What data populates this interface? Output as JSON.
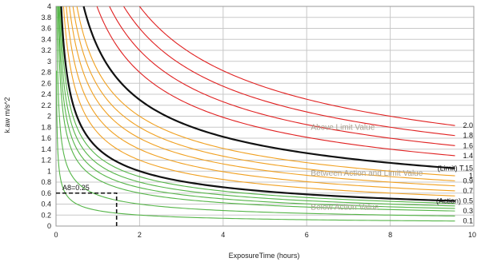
{
  "chart_data": {
    "type": "line",
    "xlabel": "ExposureTime (hours)",
    "ylabel": "k.aw m/s^2",
    "xlim": [
      0,
      10
    ],
    "ylim": [
      0,
      4
    ],
    "x_ticks": [
      "0",
      "2",
      "4",
      "6",
      "8",
      "10"
    ],
    "y_ticks": [
      "0",
      "0.2",
      "0.4",
      "0.6",
      "0.8",
      "1",
      "1.2",
      "1.4",
      "1.6",
      "1.8",
      "2",
      "2.2",
      "2.4",
      "2.6",
      "2.8",
      "3",
      "3.2",
      "3.4",
      "3.6",
      "3.8",
      "4"
    ],
    "grid": true,
    "colors": {
      "below_action": "#55b548",
      "between": "#f0a020",
      "above_limit": "#e02020",
      "reference": "#111111",
      "grid": "#c8c8c8",
      "zone_text": "#a8a090"
    },
    "series": [
      {
        "name": "0.1",
        "a8": 0.1,
        "zone": "below",
        "labeled": true
      },
      {
        "a8": 0.2,
        "zone": "below",
        "labeled": false
      },
      {
        "name": "0.3",
        "a8": 0.3,
        "zone": "below",
        "labeled": true
      },
      {
        "a8": 0.35,
        "zone": "below",
        "labeled": false
      },
      {
        "a8": 0.4,
        "zone": "below",
        "labeled": false
      },
      {
        "a8": 0.45,
        "zone": "below",
        "labeled": false
      },
      {
        "name": "(Action) 0.5",
        "a8": 0.5,
        "zone": "reference",
        "labeled": true
      },
      {
        "a8": 0.6,
        "zone": "between",
        "labeled": false
      },
      {
        "name": "0.7",
        "a8": 0.7,
        "zone": "between",
        "labeled": true
      },
      {
        "a8": 0.8,
        "zone": "between",
        "labeled": false
      },
      {
        "name": "0.9",
        "a8": 0.9,
        "zone": "between",
        "labeled": true
      },
      {
        "name": "1",
        "a8": 1.0,
        "zone": "between",
        "labeled": true
      },
      {
        "name": "(Limit) T.15",
        "a8": 1.15,
        "zone": "reference",
        "labeled": true
      },
      {
        "name": "1.4",
        "a8": 1.4,
        "zone": "above",
        "labeled": true
      },
      {
        "name": "1.6",
        "a8": 1.6,
        "zone": "above",
        "labeled": true
      },
      {
        "name": "1.8",
        "a8": 1.8,
        "zone": "above",
        "labeled": true
      },
      {
        "name": "2.0",
        "a8": 2.0,
        "zone": "above",
        "labeled": true
      }
    ],
    "zones": [
      {
        "key": "above",
        "text": "Above Limit Value",
        "x": 6.1,
        "y": 1.75
      },
      {
        "key": "between",
        "text": "Between Action and Limit Value",
        "x": 6.1,
        "y": 0.92
      },
      {
        "key": "below",
        "text": "Below Action Value",
        "x": 6.1,
        "y": 0.3
      }
    ],
    "marker": {
      "text": "A8=0.25",
      "x": 1.45,
      "y": 0.6
    }
  }
}
